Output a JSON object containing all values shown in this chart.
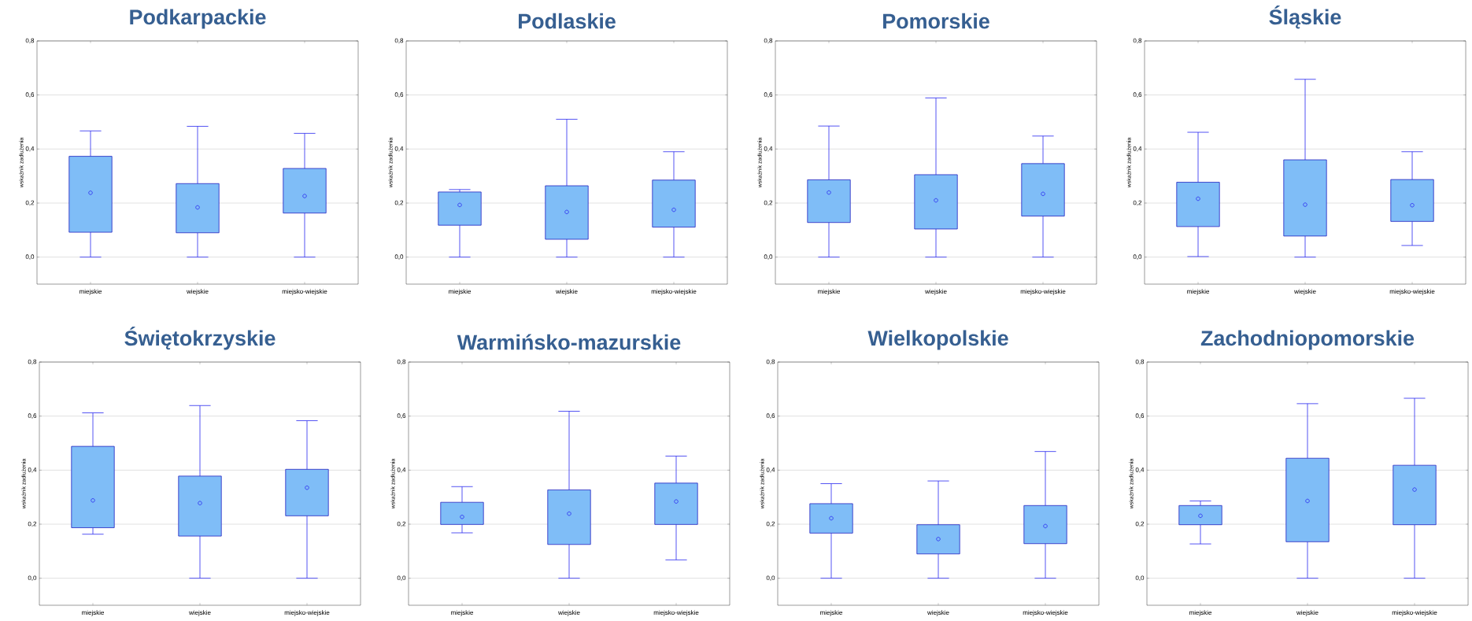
{
  "chart_data": [
    {
      "type": "box",
      "title": "Podkarpackie",
      "ylabel": "wskaźnik zadłużenia",
      "categories": [
        "miejskie",
        "wiejskie",
        "miejsko-wiejskie"
      ],
      "ylim": [
        -0.1,
        0.8
      ],
      "yticks": [
        {
          "value": 0,
          "label": "0,0"
        },
        {
          "value": 0.2,
          "label": "0,2"
        },
        {
          "value": 0.4,
          "label": "0,4"
        },
        {
          "value": 0.6,
          "label": "0,6"
        },
        {
          "value": 0.8,
          "label": "0,8"
        }
      ],
      "grid": "y",
      "series": [
        {
          "color": "#7fbdf7",
          "boxes": [
            {
              "low": 0,
              "q1": 0.092,
              "median": 0.238,
              "q3": 0.373,
              "high": 0.467
            },
            {
              "low": 0,
              "q1": 0.09,
              "median": 0.184,
              "q3": 0.272,
              "high": 0.484
            },
            {
              "low": 0,
              "q1": 0.163,
              "median": 0.226,
              "q3": 0.328,
              "high": 0.458
            }
          ]
        }
      ]
    },
    {
      "type": "box",
      "title": "Podlaskie",
      "ylabel": "wskaźnik zadłużenia",
      "categories": [
        "miejskie",
        "wiejskie",
        "miejsko-wiejskie"
      ],
      "ylim": [
        -0.1,
        0.8
      ],
      "yticks": [
        {
          "value": 0,
          "label": "0,0"
        },
        {
          "value": 0.2,
          "label": "0,2"
        },
        {
          "value": 0.4,
          "label": "0,4"
        },
        {
          "value": 0.6,
          "label": "0,6"
        },
        {
          "value": 0.8,
          "label": "0,8"
        }
      ],
      "grid": "y",
      "series": [
        {
          "color": "#7fbdf7",
          "boxes": [
            {
              "low": 0,
              "q1": 0.118,
              "median": 0.193,
              "q3": 0.241,
              "high": 0.25
            },
            {
              "low": 0,
              "q1": 0.066,
              "median": 0.167,
              "q3": 0.264,
              "high": 0.51
            },
            {
              "low": 0,
              "q1": 0.111,
              "median": 0.175,
              "q3": 0.285,
              "high": 0.39
            }
          ]
        }
      ]
    },
    {
      "type": "box",
      "title": "Pomorskie",
      "ylabel": "wskaźnik zadłużenia",
      "categories": [
        "miejskie",
        "wiejskie",
        "miejsko-wiejskie"
      ],
      "ylim": [
        -0.1,
        0.8
      ],
      "yticks": [
        {
          "value": 0,
          "label": "0,0"
        },
        {
          "value": 0.2,
          "label": "0,2"
        },
        {
          "value": 0.4,
          "label": "0,4"
        },
        {
          "value": 0.6,
          "label": "0,6"
        },
        {
          "value": 0.8,
          "label": "0,8"
        }
      ],
      "grid": "y",
      "series": [
        {
          "color": "#7fbdf7",
          "boxes": [
            {
              "low": 0,
              "q1": 0.128,
              "median": 0.239,
              "q3": 0.286,
              "high": 0.485
            },
            {
              "low": 0,
              "q1": 0.104,
              "median": 0.21,
              "q3": 0.305,
              "high": 0.589
            },
            {
              "low": 0,
              "q1": 0.152,
              "median": 0.234,
              "q3": 0.346,
              "high": 0.448
            }
          ]
        }
      ]
    },
    {
      "type": "box",
      "title": "Śląskie",
      "ylabel": "wskaźnik zadłużenia",
      "categories": [
        "miejskie",
        "wiejskie",
        "miejsko-wiejskie"
      ],
      "ylim": [
        -0.1,
        0.8
      ],
      "yticks": [
        {
          "value": 0,
          "label": "0,0"
        },
        {
          "value": 0.2,
          "label": "0,2"
        },
        {
          "value": 0.4,
          "label": "0,4"
        },
        {
          "value": 0.6,
          "label": "0,6"
        },
        {
          "value": 0.8,
          "label": "0,8"
        }
      ],
      "grid": "y",
      "series": [
        {
          "color": "#7fbdf7",
          "boxes": [
            {
              "low": 0.002,
              "q1": 0.113,
              "median": 0.216,
              "q3": 0.277,
              "high": 0.462
            },
            {
              "low": 0,
              "q1": 0.078,
              "median": 0.194,
              "q3": 0.36,
              "high": 0.658
            },
            {
              "low": 0.043,
              "q1": 0.132,
              "median": 0.192,
              "q3": 0.287,
              "high": 0.39
            }
          ]
        }
      ]
    },
    {
      "type": "box",
      "title": "Świętokrzyskie",
      "ylabel": "wskaźnik zadłużenia",
      "categories": [
        "miejskie",
        "wiejskie",
        "miejsko-wiejskie"
      ],
      "ylim": [
        -0.1,
        0.8
      ],
      "yticks": [
        {
          "value": 0,
          "label": "0,0"
        },
        {
          "value": 0.2,
          "label": "0,2"
        },
        {
          "value": 0.4,
          "label": "0,4"
        },
        {
          "value": 0.6,
          "label": "0,6"
        },
        {
          "value": 0.8,
          "label": "0,8"
        }
      ],
      "grid": "y",
      "series": [
        {
          "color": "#7fbdf7",
          "boxes": [
            {
              "low": 0.163,
              "q1": 0.187,
              "median": 0.288,
              "q3": 0.488,
              "high": 0.612
            },
            {
              "low": 0,
              "q1": 0.156,
              "median": 0.278,
              "q3": 0.378,
              "high": 0.639
            },
            {
              "low": 0,
              "q1": 0.231,
              "median": 0.335,
              "q3": 0.403,
              "high": 0.583
            }
          ]
        }
      ]
    },
    {
      "type": "box",
      "title": "Warmińsko-mazurskie",
      "ylabel": "wskaźnik zadłużenia",
      "categories": [
        "miejskie",
        "wiejskie",
        "miejsko-wiejskie"
      ],
      "ylim": [
        -0.1,
        0.8
      ],
      "yticks": [
        {
          "value": 0,
          "label": "0,0"
        },
        {
          "value": 0.2,
          "label": "0,2"
        },
        {
          "value": 0.4,
          "label": "0,4"
        },
        {
          "value": 0.6,
          "label": "0,6"
        },
        {
          "value": 0.8,
          "label": "0,8"
        }
      ],
      "grid": "y",
      "series": [
        {
          "color": "#7fbdf7",
          "boxes": [
            {
              "low": 0.168,
              "q1": 0.199,
              "median": 0.227,
              "q3": 0.281,
              "high": 0.339
            },
            {
              "low": 0,
              "q1": 0.125,
              "median": 0.239,
              "q3": 0.327,
              "high": 0.618
            },
            {
              "low": 0.068,
              "q1": 0.199,
              "median": 0.284,
              "q3": 0.352,
              "high": 0.452
            }
          ]
        }
      ]
    },
    {
      "type": "box",
      "title": "Wielkopolskie",
      "ylabel": "wskaźnik zadłużenia",
      "categories": [
        "miejskie",
        "wiejskie",
        "miejsko-wiejskie"
      ],
      "ylim": [
        -0.1,
        0.8
      ],
      "yticks": [
        {
          "value": 0,
          "label": "0,0"
        },
        {
          "value": 0.2,
          "label": "0,2"
        },
        {
          "value": 0.4,
          "label": "0,4"
        },
        {
          "value": 0.6,
          "label": "0,6"
        },
        {
          "value": 0.8,
          "label": "0,8"
        }
      ],
      "grid": "y",
      "series": [
        {
          "color": "#7fbdf7",
          "boxes": [
            {
              "low": 0,
              "q1": 0.167,
              "median": 0.222,
              "q3": 0.276,
              "high": 0.35
            },
            {
              "low": 0,
              "q1": 0.09,
              "median": 0.145,
              "q3": 0.198,
              "high": 0.36
            },
            {
              "low": 0,
              "q1": 0.128,
              "median": 0.193,
              "q3": 0.269,
              "high": 0.469
            }
          ]
        }
      ]
    },
    {
      "type": "box",
      "title": "Zachodniopomorskie",
      "ylabel": "wskaźnik zadłużenia",
      "categories": [
        "miejskie",
        "wiejskie",
        "miejsko-wiejskie"
      ],
      "ylim": [
        -0.1,
        0.8
      ],
      "yticks": [
        {
          "value": 0,
          "label": "0,0"
        },
        {
          "value": 0.2,
          "label": "0,2"
        },
        {
          "value": 0.4,
          "label": "0,4"
        },
        {
          "value": 0.6,
          "label": "0,6"
        },
        {
          "value": 0.8,
          "label": "0,8"
        }
      ],
      "grid": "y",
      "series": [
        {
          "color": "#7fbdf7",
          "boxes": [
            {
              "low": 0.127,
              "q1": 0.198,
              "median": 0.231,
              "q3": 0.269,
              "high": 0.286
            },
            {
              "low": 0,
              "q1": 0.135,
              "median": 0.286,
              "q3": 0.444,
              "high": 0.646
            },
            {
              "low": 0,
              "q1": 0.198,
              "median": 0.328,
              "q3": 0.418,
              "high": 0.666
            }
          ]
        }
      ]
    }
  ]
}
